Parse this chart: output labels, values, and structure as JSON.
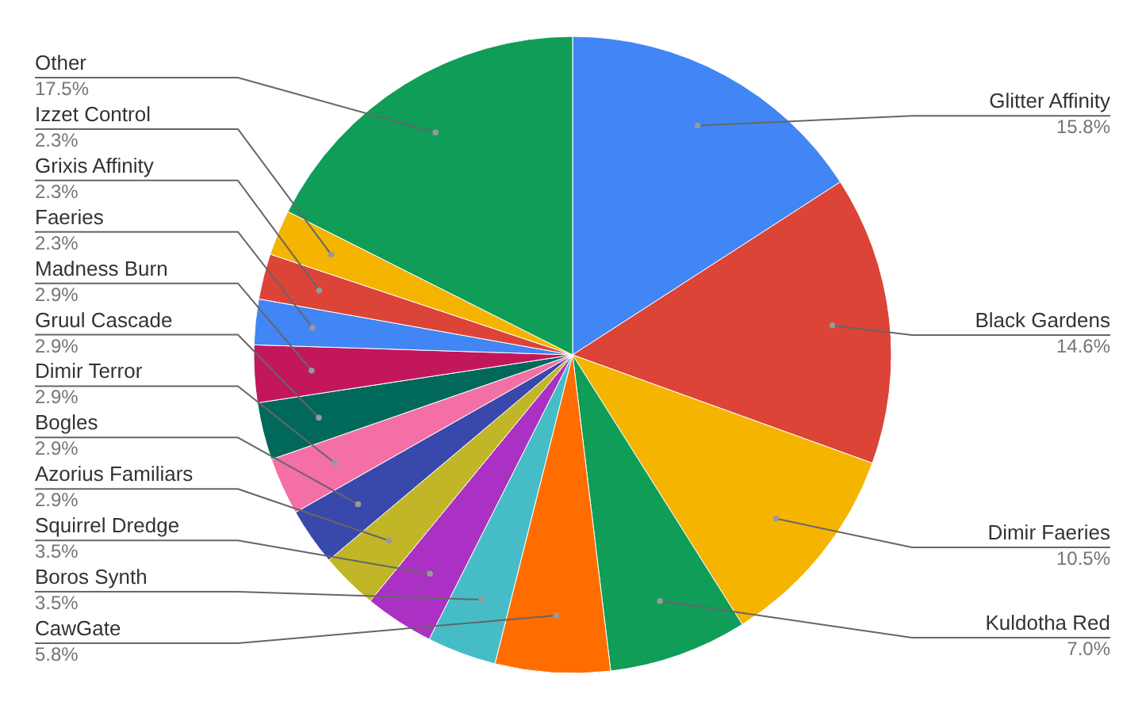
{
  "chart_data": {
    "type": "pie",
    "categories": [
      "Glitter Affinity",
      "Black Gardens",
      "Dimir Faeries",
      "Kuldotha Red",
      "CawGate",
      "Boros Synth",
      "Squirrel Dredge",
      "Azorius Familiars",
      "Bogles",
      "Dimir Terror",
      "Gruul Cascade",
      "Madness Burn",
      "Faeries",
      "Grixis Affinity",
      "Izzet Control",
      "Other"
    ],
    "values": [
      15.8,
      14.6,
      10.5,
      7.0,
      5.8,
      3.5,
      3.5,
      2.9,
      2.9,
      2.9,
      2.9,
      2.9,
      2.3,
      2.3,
      2.3,
      17.5
    ],
    "value_labels": [
      "15.8%",
      "14.6%",
      "10.5%",
      "7.0%",
      "5.8%",
      "3.5%",
      "3.5%",
      "2.9%",
      "2.9%",
      "2.9%",
      "2.9%",
      "2.9%",
      "2.3%",
      "2.3%",
      "2.3%",
      "17.5%"
    ],
    "colors": [
      "#4285f4",
      "#db4437",
      "#f4b400",
      "#0f9d58",
      "#ff6d00",
      "#46bdc6",
      "#ab30c4",
      "#c0b627",
      "#3949ab",
      "#f46fa6",
      "#00695c",
      "#c2185b",
      "#4285f4",
      "#db4437",
      "#f4b400",
      "#0f9d58"
    ]
  }
}
